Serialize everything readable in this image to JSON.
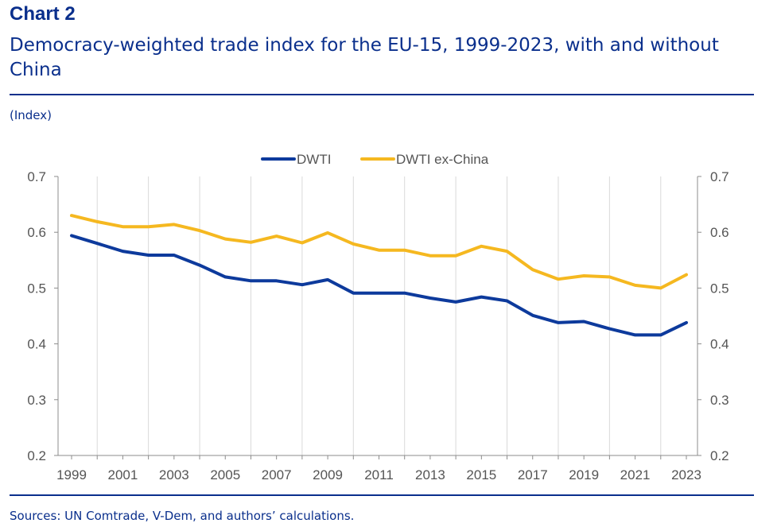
{
  "header": {
    "chart_label": "Chart 2",
    "title": "Democracy-weighted trade index for the EU-15, 1999-2023, with and without China",
    "unit": "(Index)"
  },
  "footer": {
    "source": "Sources: UN Comtrade, V-Dem, and authors’ calculations."
  },
  "chart_data": {
    "type": "line",
    "title": "",
    "xlabel": "",
    "ylabel": "",
    "x": [
      1999,
      2000,
      2001,
      2002,
      2003,
      2004,
      2005,
      2006,
      2007,
      2008,
      2009,
      2010,
      2011,
      2012,
      2013,
      2014,
      2015,
      2016,
      2017,
      2018,
      2019,
      2020,
      2021,
      2022,
      2023
    ],
    "x_tick_labels": [
      "1999",
      "2001",
      "2003",
      "2005",
      "2007",
      "2009",
      "2011",
      "2013",
      "2015",
      "2017",
      "2019",
      "2021",
      "2023"
    ],
    "y_tick_labels": [
      "0.7",
      "0.6",
      "0.5",
      "0.4",
      "0.3",
      "0.2"
    ],
    "ylim": [
      0.2,
      0.7
    ],
    "yticks": [
      0.2,
      0.3,
      0.4,
      0.5,
      0.6,
      0.7
    ],
    "grid": "vertical",
    "secondary_y_axis": true,
    "legend_position": "top-center",
    "series": [
      {
        "name": "DWTI",
        "color": "#0d3a9c",
        "values": [
          0.594,
          0.58,
          0.566,
          0.559,
          0.559,
          0.541,
          0.52,
          0.513,
          0.513,
          0.506,
          0.515,
          0.491,
          0.491,
          0.491,
          0.482,
          0.475,
          0.484,
          0.477,
          0.451,
          0.438,
          0.44,
          0.427,
          0.416,
          0.416,
          0.438
        ]
      },
      {
        "name": "DWTI ex-China",
        "color": "#f5b820",
        "values": [
          0.63,
          0.619,
          0.61,
          0.61,
          0.614,
          0.603,
          0.588,
          0.582,
          0.593,
          0.581,
          0.599,
          0.579,
          0.568,
          0.568,
          0.558,
          0.558,
          0.575,
          0.566,
          0.533,
          0.516,
          0.522,
          0.52,
          0.505,
          0.5,
          0.524
        ]
      }
    ]
  }
}
